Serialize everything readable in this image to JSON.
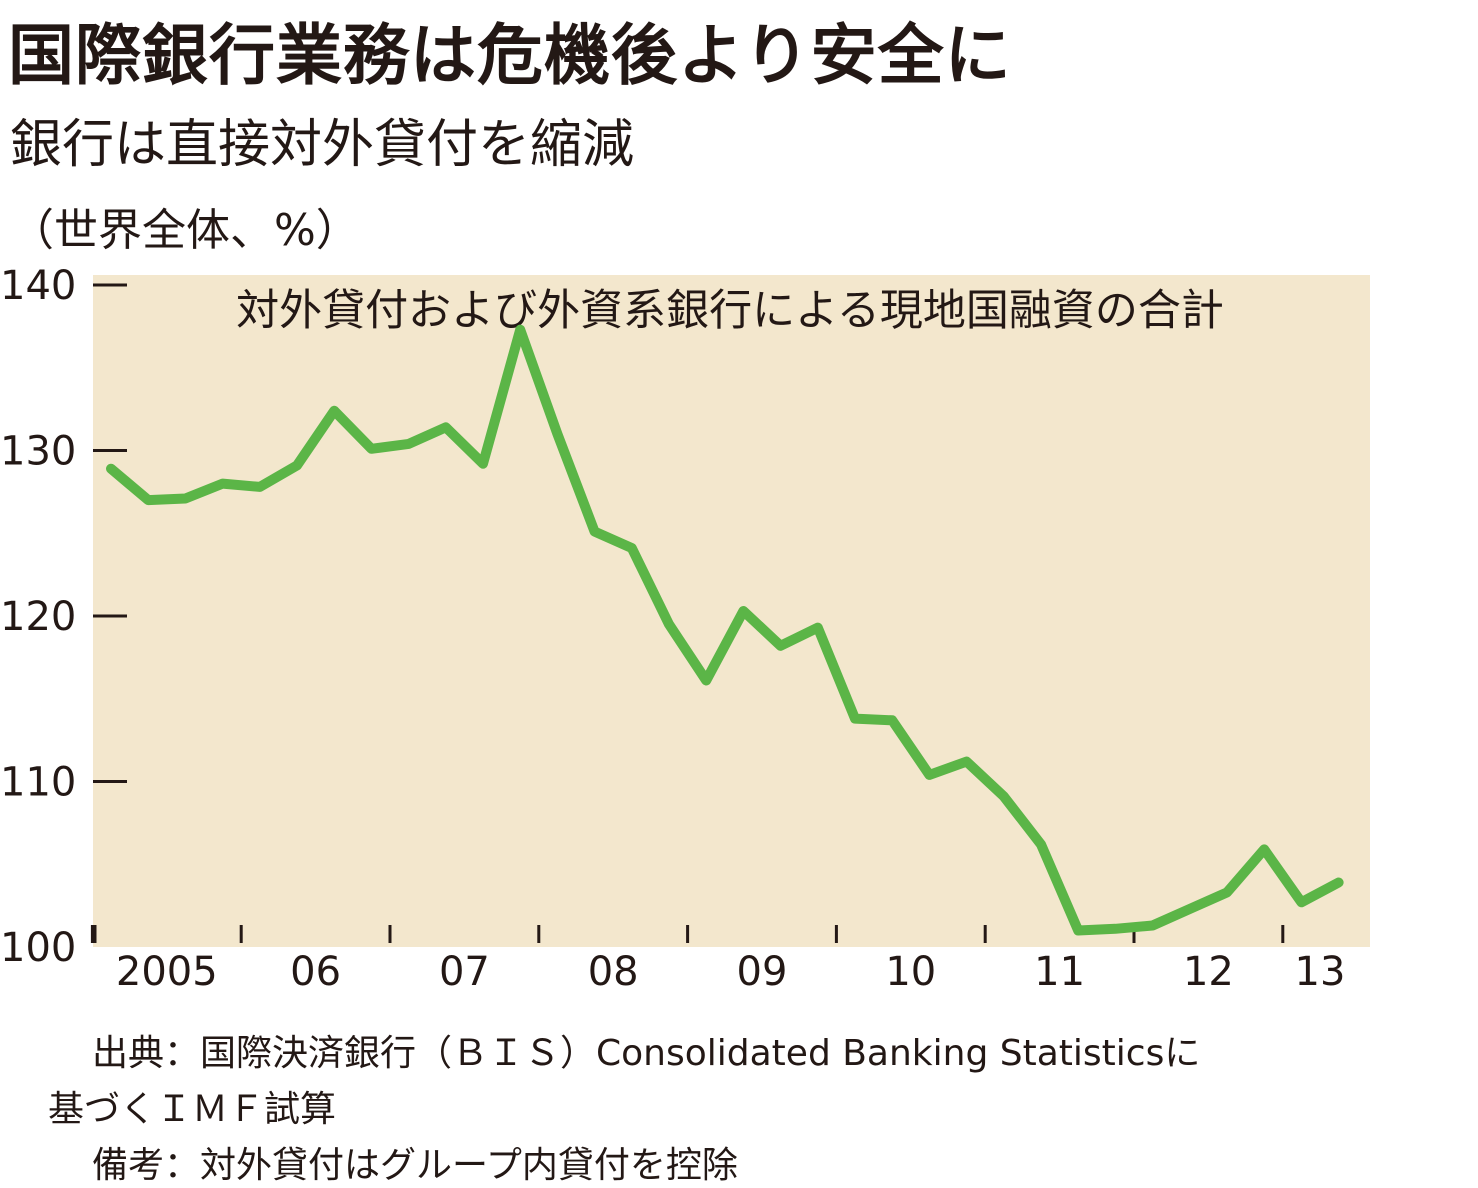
{
  "title": "国際銀行業務は危機後より安全に",
  "subtitle": "銀行は直接対外貸付を縮減",
  "unit_label": "（世界全体、%）",
  "chart_data": {
    "type": "line",
    "series": [
      {
        "name": "対外貸付および外資系銀行による現地国融資の合計",
        "color": "#5bb547",
        "values": [
          128.9,
          127.0,
          127.1,
          128.0,
          127.8,
          129.1,
          132.4,
          130.1,
          130.4,
          131.4,
          129.2,
          137.3,
          131.0,
          125.1,
          124.1,
          119.5,
          116.1,
          120.3,
          118.2,
          119.3,
          113.8,
          113.7,
          110.4,
          111.2,
          109.1,
          106.2,
          101.0,
          101.1,
          101.3,
          102.3,
          103.3,
          105.9,
          102.7,
          103.9
        ]
      }
    ],
    "x_start_year": 2005,
    "points_per_year": 4,
    "xtick_labels": [
      "2005",
      "06",
      "07",
      "08",
      "09",
      "10",
      "11",
      "12",
      "13"
    ],
    "yticks": [
      100,
      110,
      120,
      130,
      140
    ],
    "ylim": [
      100,
      140
    ],
    "plot_background": "#f3e7cd",
    "grid": false
  },
  "notes": {
    "source_line1": "出典：国際決済銀行（ＢＩＳ）Consolidated Banking Statisticsに",
    "source_line2": "基づくＩＭＦ試算",
    "remark": "備考：対外貸付はグループ内貸付を控除"
  }
}
